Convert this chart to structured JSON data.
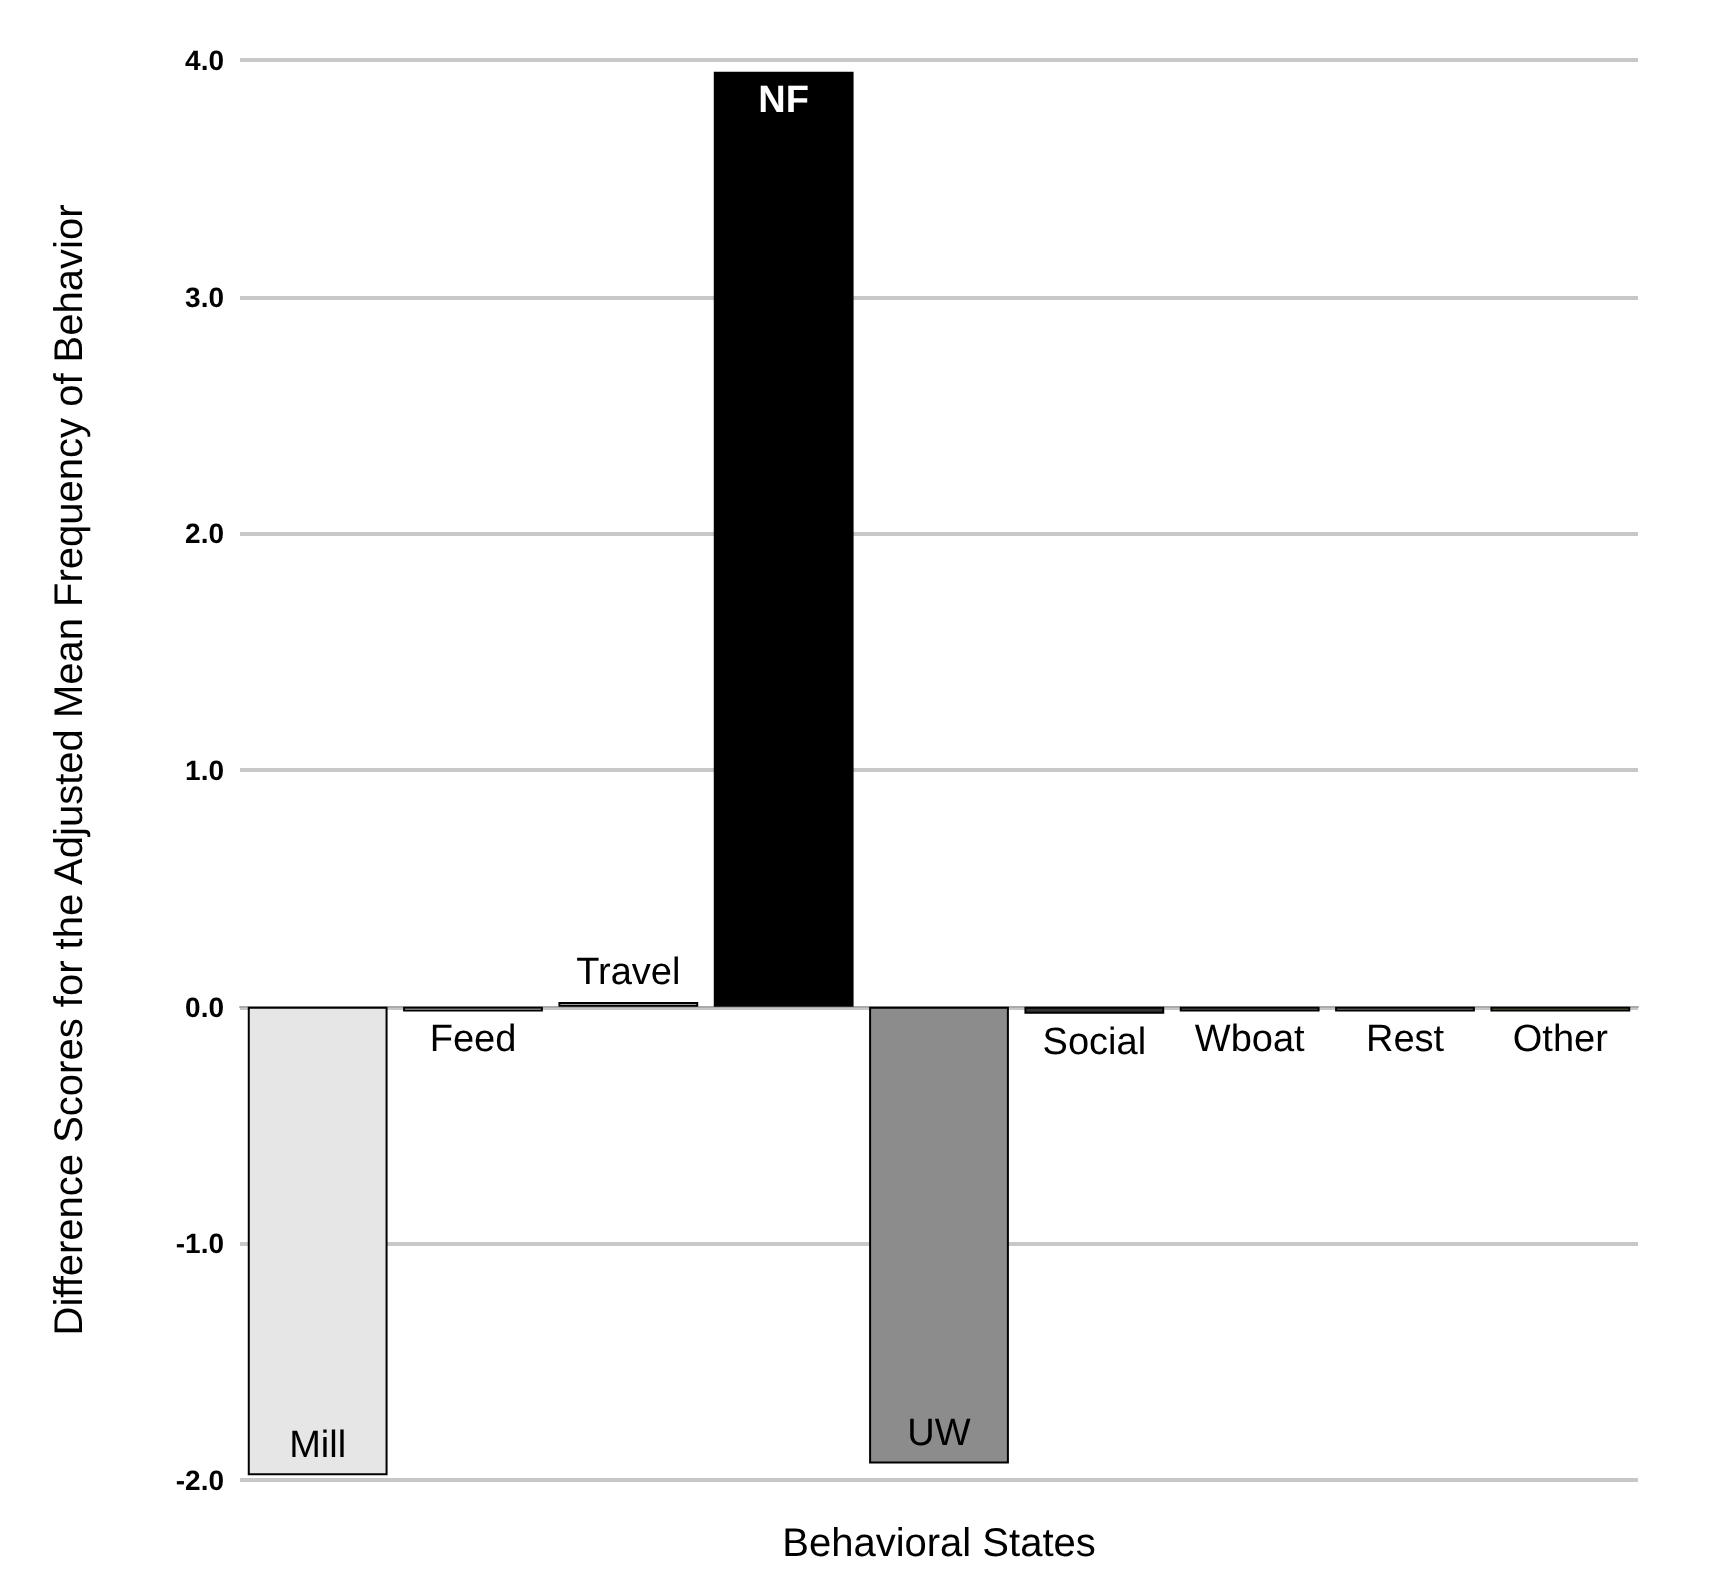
{
  "chart_data": {
    "type": "bar",
    "xlabel": "Behavioral States",
    "ylabel": "Difference Scores for the Adjusted Mean Frequency of Behavior",
    "categories": [
      "Mill",
      "Feed",
      "Travel",
      "NF",
      "UW",
      "Social",
      "Wboat",
      "Rest",
      "Other"
    ],
    "values": [
      -1.98,
      -0.02,
      0.02,
      3.95,
      -1.93,
      -0.03,
      -0.02,
      -0.02,
      -0.02
    ],
    "colors": [
      "#e6e6e6",
      "#ffffff",
      "#d9d9d9",
      "#000000",
      "#8c8c8c",
      "#333333",
      "#7f7f7f",
      "#a6a6a6",
      "#8a8a5c"
    ],
    "ylim": [
      -2,
      4
    ],
    "yticks": [
      {
        "value": -2,
        "label": "-2.0"
      },
      {
        "value": -1,
        "label": "-1.0"
      },
      {
        "value": 0,
        "label": "0.0"
      },
      {
        "value": 1,
        "label": "1.0"
      },
      {
        "value": 2,
        "label": "2.0"
      },
      {
        "value": 3,
        "label": "3.0"
      },
      {
        "value": 4,
        "label": "4.0"
      }
    ],
    "grid": "y"
  }
}
